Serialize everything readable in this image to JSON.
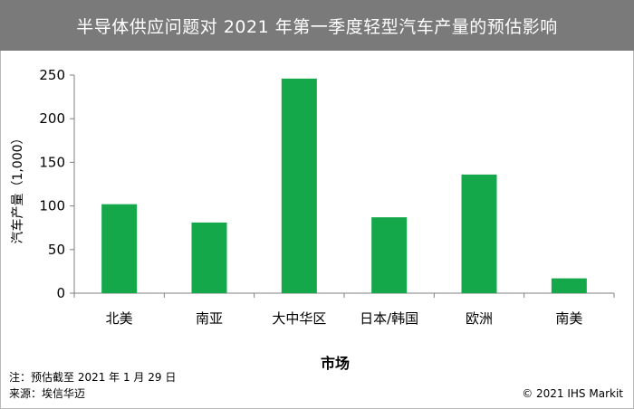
{
  "header": {
    "title": "半导体供应问题对 2021 年第一季度轻型汽车产量的预估影响"
  },
  "chart_data": {
    "type": "bar",
    "title": "半导体供应问题对 2021 年第一季度轻型汽车产量的预估影响",
    "xlabel": "市场",
    "ylabel": "汽车产量（1,000）",
    "categories": [
      "北美",
      "南亚",
      "大中华区",
      "日本/韩国",
      "欧洲",
      "南美"
    ],
    "values": [
      102,
      81,
      246,
      87,
      136,
      17
    ],
    "ylim": [
      0,
      250
    ],
    "yticks": [
      0,
      50,
      100,
      150,
      200,
      250
    ],
    "bar_color": "#14a84a",
    "grid": false,
    "legend": "none"
  },
  "footer": {
    "note": "注：预估截至 2021 年 1 月 29 日",
    "source": "来源：埃信华迈",
    "copyright": "© 2021 IHS Markit"
  }
}
